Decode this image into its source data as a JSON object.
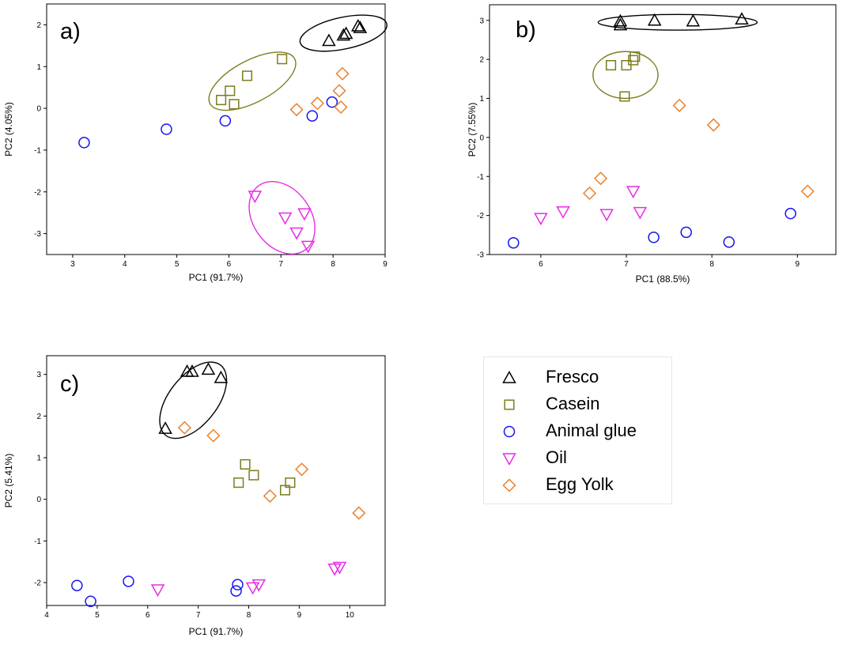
{
  "legend": [
    {
      "label": "Fresco",
      "marker": "triangle-up",
      "color": "#000000"
    },
    {
      "label": "Casein",
      "marker": "square",
      "color": "#7c7c1e"
    },
    {
      "label": "Animal glue",
      "marker": "circle",
      "color": "#1414ee"
    },
    {
      "label": "Oil",
      "marker": "triangle-down",
      "color": "#e62ce6"
    },
    {
      "label": "Egg Yolk",
      "marker": "diamond",
      "color": "#e8812c"
    }
  ],
  "chart_data": [
    {
      "type": "scatter",
      "panel_label": "a)",
      "xlabel": "PC1 (91.7%)",
      "ylabel": "PC2 (4.05%)",
      "xlim": [
        2.5,
        9
      ],
      "ylim": [
        -3.5,
        2.5
      ],
      "xticks": [
        3,
        4,
        5,
        6,
        7,
        8,
        9
      ],
      "yticks": [
        -3,
        -2,
        -1,
        0,
        1,
        2
      ],
      "series": [
        {
          "name": "Fresco",
          "points": [
            [
              7.92,
              1.62
            ],
            [
              8.2,
              1.75
            ],
            [
              8.25,
              1.79
            ],
            [
              8.48,
              1.97
            ],
            [
              8.52,
              1.93
            ]
          ]
        },
        {
          "name": "Casein",
          "points": [
            [
              5.85,
              0.2
            ],
            [
              6.02,
              0.42
            ],
            [
              6.1,
              0.1
            ],
            [
              6.35,
              0.78
            ],
            [
              7.02,
              1.18
            ]
          ]
        },
        {
          "name": "Animal glue",
          "points": [
            [
              3.22,
              -0.82
            ],
            [
              4.8,
              -0.5
            ],
            [
              5.93,
              -0.3
            ],
            [
              7.6,
              -0.18
            ],
            [
              7.98,
              0.15
            ]
          ]
        },
        {
          "name": "Oil",
          "points": [
            [
              6.5,
              -2.1
            ],
            [
              7.08,
              -2.62
            ],
            [
              7.3,
              -2.98
            ],
            [
              7.45,
              -2.52
            ],
            [
              7.52,
              -3.3
            ]
          ]
        },
        {
          "name": "Egg Yolk",
          "points": [
            [
              7.3,
              -0.03
            ],
            [
              7.7,
              0.12
            ],
            [
              8.12,
              0.42
            ],
            [
              8.15,
              0.03
            ],
            [
              8.18,
              0.83
            ]
          ]
        }
      ],
      "ellipses": [
        {
          "group": "Fresco",
          "cx": 8.2,
          "cy": 1.8,
          "rx": 0.85,
          "ry": 0.38,
          "angle": -12
        },
        {
          "group": "Casein",
          "cx": 6.45,
          "cy": 0.65,
          "rx": 0.92,
          "ry": 0.5,
          "angle": -28
        },
        {
          "group": "Oil",
          "cx": 7.02,
          "cy": -2.62,
          "rx": 0.55,
          "ry": 0.95,
          "angle": -36
        }
      ]
    },
    {
      "type": "scatter",
      "panel_label": "b)",
      "xlabel": "PC1 (88.5%)",
      "ylabel": "PC2 (7.55%)",
      "xlim": [
        5.4,
        9.45
      ],
      "ylim": [
        -3,
        3.4
      ],
      "xticks": [
        6,
        7,
        8,
        9
      ],
      "yticks": [
        -3,
        -2,
        -1,
        0,
        1,
        2,
        3
      ],
      "series": [
        {
          "name": "Fresco",
          "points": [
            [
              6.93,
              2.88
            ],
            [
              6.93,
              2.98
            ],
            [
              7.33,
              3.0
            ],
            [
              7.78,
              2.98
            ],
            [
              8.35,
              3.03
            ]
          ]
        },
        {
          "name": "Casein",
          "points": [
            [
              6.82,
              1.85
            ],
            [
              6.98,
              1.05
            ],
            [
              7.0,
              1.85
            ],
            [
              7.08,
              1.98
            ],
            [
              7.1,
              2.07
            ]
          ]
        },
        {
          "name": "Animal glue",
          "points": [
            [
              5.68,
              -2.7
            ],
            [
              7.32,
              -2.56
            ],
            [
              7.7,
              -2.43
            ],
            [
              8.2,
              -2.68
            ],
            [
              8.92,
              -1.95
            ]
          ]
        },
        {
          "name": "Oil",
          "points": [
            [
              6.0,
              -2.07
            ],
            [
              6.26,
              -1.9
            ],
            [
              6.77,
              -1.97
            ],
            [
              7.08,
              -1.38
            ],
            [
              7.16,
              -1.92
            ]
          ]
        },
        {
          "name": "Egg Yolk",
          "points": [
            [
              6.57,
              -1.43
            ],
            [
              6.7,
              -1.05
            ],
            [
              7.62,
              0.82
            ],
            [
              8.02,
              0.32
            ],
            [
              9.12,
              -1.38
            ]
          ]
        }
      ],
      "ellipses": [
        {
          "group": "Fresco",
          "cx": 7.6,
          "cy": 2.95,
          "rx": 0.93,
          "ry": 0.2,
          "angle": 0
        },
        {
          "group": "Casein",
          "cx": 6.99,
          "cy": 1.6,
          "rx": 0.38,
          "ry": 0.6,
          "angle": 0
        }
      ]
    },
    {
      "type": "scatter",
      "panel_label": "c)",
      "xlabel": "PC1 (91.7%)",
      "ylabel": "PC2 (5.41%)",
      "xlim": [
        4,
        10.7
      ],
      "ylim": [
        -2.55,
        3.45
      ],
      "xticks": [
        4,
        5,
        6,
        7,
        8,
        9,
        10
      ],
      "yticks": [
        -2,
        -1,
        0,
        1,
        2,
        3
      ],
      "series": [
        {
          "name": "Fresco",
          "points": [
            [
              6.35,
              1.7
            ],
            [
              6.78,
              3.07
            ],
            [
              6.88,
              3.07
            ],
            [
              7.2,
              3.12
            ],
            [
              7.45,
              2.92
            ]
          ]
        },
        {
          "name": "Casein",
          "points": [
            [
              7.8,
              0.4
            ],
            [
              7.93,
              0.84
            ],
            [
              8.1,
              0.58
            ],
            [
              8.72,
              0.22
            ],
            [
              8.82,
              0.4
            ]
          ]
        },
        {
          "name": "Animal glue",
          "points": [
            [
              4.6,
              -2.07
            ],
            [
              4.87,
              -2.45
            ],
            [
              5.62,
              -1.97
            ],
            [
              7.75,
              -2.2
            ],
            [
              7.78,
              -2.05
            ]
          ]
        },
        {
          "name": "Oil",
          "points": [
            [
              6.2,
              -2.17
            ],
            [
              8.08,
              -2.12
            ],
            [
              8.2,
              -2.05
            ],
            [
              9.7,
              -1.67
            ],
            [
              9.8,
              -1.63
            ]
          ]
        },
        {
          "name": "Egg Yolk",
          "points": [
            [
              6.73,
              1.72
            ],
            [
              7.3,
              1.53
            ],
            [
              8.42,
              0.08
            ],
            [
              9.05,
              0.72
            ],
            [
              10.18,
              -0.33
            ]
          ]
        }
      ],
      "ellipses": [
        {
          "group": "Fresco",
          "cx": 6.9,
          "cy": 2.38,
          "rx": 0.48,
          "ry": 1.07,
          "angle": 38
        }
      ]
    }
  ]
}
